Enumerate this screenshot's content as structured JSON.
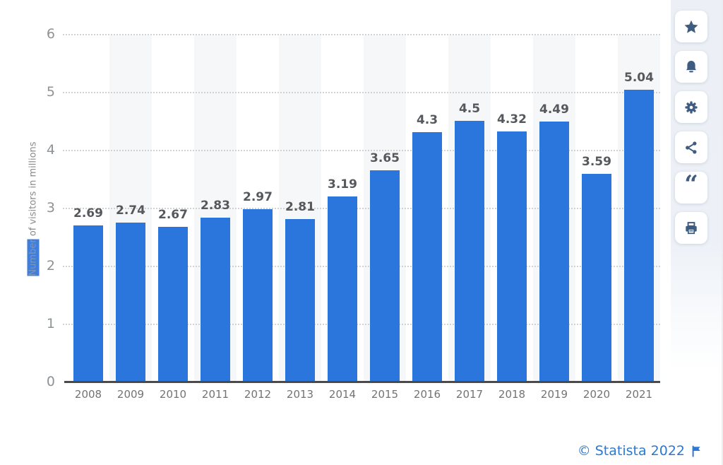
{
  "chart_data": {
    "type": "bar",
    "categories": [
      "2008",
      "2009",
      "2010",
      "2011",
      "2012",
      "2013",
      "2014",
      "2015",
      "2016",
      "2017",
      "2018",
      "2019",
      "2020",
      "2021"
    ],
    "values": [
      2.69,
      2.74,
      2.67,
      2.83,
      2.97,
      2.81,
      3.19,
      3.65,
      4.3,
      4.5,
      4.32,
      4.49,
      3.59,
      5.04
    ],
    "value_labels": [
      "2.69",
      "2.74",
      "2.67",
      "2.83",
      "2.97",
      "2.81",
      "3.19",
      "3.65",
      "4.3",
      "4.5",
      "4.32",
      "4.49",
      "3.59",
      "5.04"
    ],
    "title": "",
    "xlabel": "",
    "ylabel": "Number of visitors in millions",
    "ylabel_highlighted_word": "Number",
    "ylim": [
      0,
      6
    ],
    "yticks": [
      0,
      1,
      2,
      3,
      4,
      5,
      6
    ],
    "grid": "horizontal-dotted",
    "legend": "none",
    "bar_color": "#2b76dc",
    "stripe_color": "#f6f7f8"
  },
  "sidebar": {
    "buttons": [
      {
        "name": "favorite",
        "icon": "star-icon"
      },
      {
        "name": "alerts",
        "icon": "bell-icon"
      },
      {
        "name": "settings",
        "icon": "gear-icon"
      },
      {
        "name": "share",
        "icon": "share-icon"
      },
      {
        "name": "cite",
        "icon": "quote-icon"
      },
      {
        "name": "print",
        "icon": "printer-icon"
      }
    ],
    "icon_color": "#3e5c80"
  },
  "footer": {
    "copyright": "© Statista 2022",
    "flag_icon": "flag-icon",
    "link_color": "#2b79d2"
  }
}
